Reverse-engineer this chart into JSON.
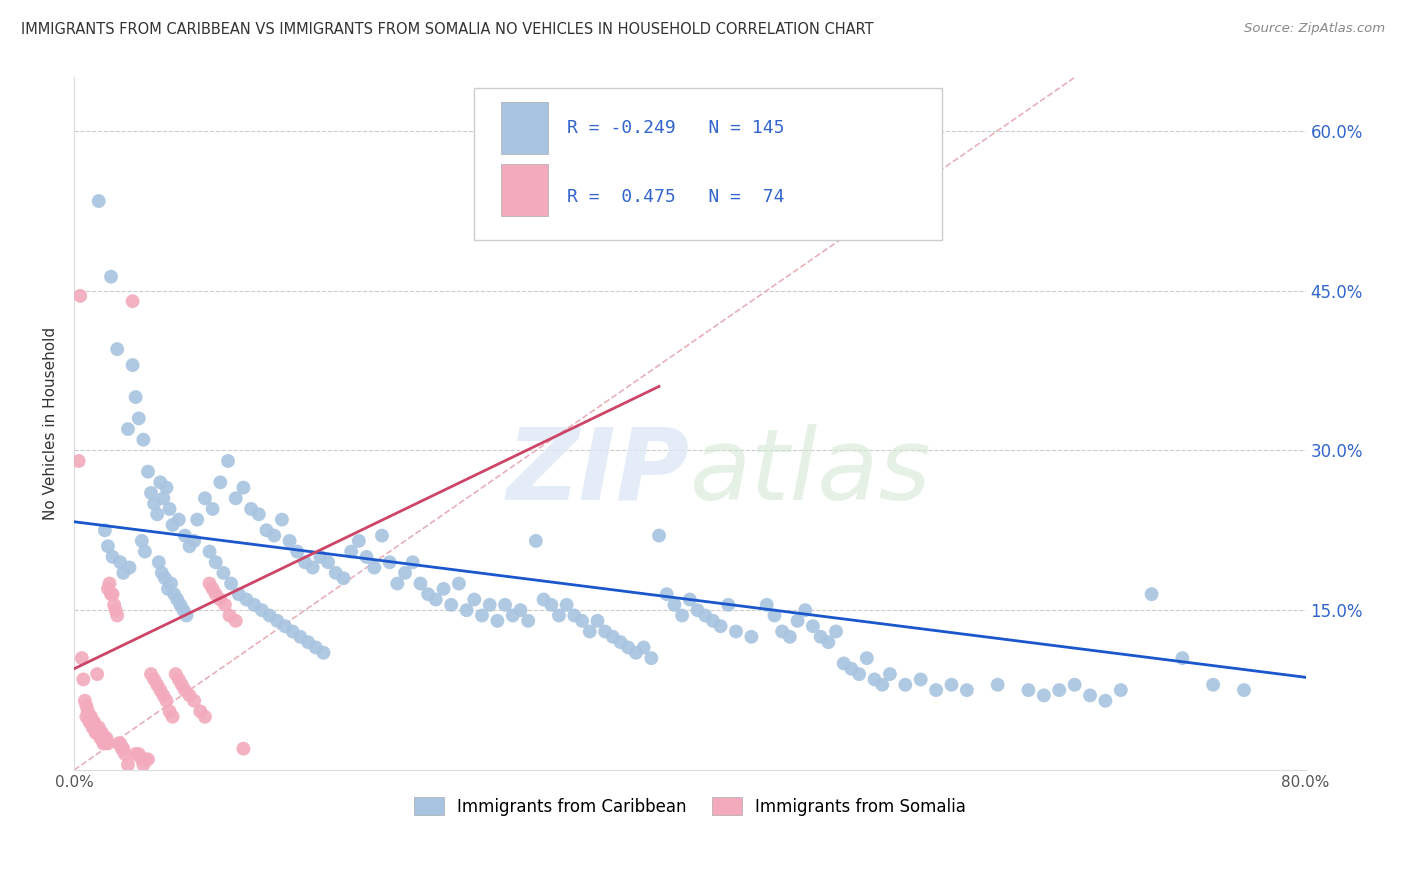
{
  "title": "IMMIGRANTS FROM CARIBBEAN VS IMMIGRANTS FROM SOMALIA NO VEHICLES IN HOUSEHOLD CORRELATION CHART",
  "source": "Source: ZipAtlas.com",
  "ylabel": "No Vehicles in Household",
  "watermark_zip": "ZIP",
  "watermark_atlas": "atlas",
  "xmin": 0.0,
  "xmax": 0.8,
  "ymin": 0.0,
  "ymax": 0.65,
  "blue_color": "#a8c4e0",
  "pink_color": "#f2aabc",
  "blue_line_color": "#1a56cc",
  "pink_line_color": "#cc4466",
  "ref_line_color": "#e8b0b8",
  "blue_scatter": [
    [
      0.016,
      0.534
    ],
    [
      0.024,
      0.463
    ],
    [
      0.028,
      0.395
    ],
    [
      0.035,
      0.32
    ],
    [
      0.038,
      0.38
    ],
    [
      0.04,
      0.35
    ],
    [
      0.042,
      0.33
    ],
    [
      0.045,
      0.31
    ],
    [
      0.048,
      0.28
    ],
    [
      0.05,
      0.26
    ],
    [
      0.052,
      0.25
    ],
    [
      0.054,
      0.24
    ],
    [
      0.056,
      0.27
    ],
    [
      0.058,
      0.255
    ],
    [
      0.06,
      0.265
    ],
    [
      0.062,
      0.245
    ],
    [
      0.064,
      0.23
    ],
    [
      0.068,
      0.235
    ],
    [
      0.072,
      0.22
    ],
    [
      0.075,
      0.21
    ],
    [
      0.02,
      0.225
    ],
    [
      0.022,
      0.21
    ],
    [
      0.025,
      0.2
    ],
    [
      0.03,
      0.195
    ],
    [
      0.032,
      0.185
    ],
    [
      0.036,
      0.19
    ],
    [
      0.044,
      0.215
    ],
    [
      0.046,
      0.205
    ],
    [
      0.055,
      0.195
    ],
    [
      0.057,
      0.185
    ],
    [
      0.059,
      0.18
    ],
    [
      0.061,
      0.17
    ],
    [
      0.063,
      0.175
    ],
    [
      0.065,
      0.165
    ],
    [
      0.067,
      0.16
    ],
    [
      0.069,
      0.155
    ],
    [
      0.071,
      0.15
    ],
    [
      0.073,
      0.145
    ],
    [
      0.078,
      0.215
    ],
    [
      0.08,
      0.235
    ],
    [
      0.085,
      0.255
    ],
    [
      0.09,
      0.245
    ],
    [
      0.095,
      0.27
    ],
    [
      0.1,
      0.29
    ],
    [
      0.105,
      0.255
    ],
    [
      0.11,
      0.265
    ],
    [
      0.115,
      0.245
    ],
    [
      0.12,
      0.24
    ],
    [
      0.125,
      0.225
    ],
    [
      0.13,
      0.22
    ],
    [
      0.135,
      0.235
    ],
    [
      0.14,
      0.215
    ],
    [
      0.145,
      0.205
    ],
    [
      0.15,
      0.195
    ],
    [
      0.155,
      0.19
    ],
    [
      0.16,
      0.2
    ],
    [
      0.165,
      0.195
    ],
    [
      0.17,
      0.185
    ],
    [
      0.175,
      0.18
    ],
    [
      0.088,
      0.205
    ],
    [
      0.092,
      0.195
    ],
    [
      0.097,
      0.185
    ],
    [
      0.102,
      0.175
    ],
    [
      0.107,
      0.165
    ],
    [
      0.112,
      0.16
    ],
    [
      0.117,
      0.155
    ],
    [
      0.122,
      0.15
    ],
    [
      0.127,
      0.145
    ],
    [
      0.132,
      0.14
    ],
    [
      0.137,
      0.135
    ],
    [
      0.142,
      0.13
    ],
    [
      0.147,
      0.125
    ],
    [
      0.152,
      0.12
    ],
    [
      0.157,
      0.115
    ],
    [
      0.162,
      0.11
    ],
    [
      0.18,
      0.205
    ],
    [
      0.185,
      0.215
    ],
    [
      0.19,
      0.2
    ],
    [
      0.195,
      0.19
    ],
    [
      0.2,
      0.22
    ],
    [
      0.205,
      0.195
    ],
    [
      0.21,
      0.175
    ],
    [
      0.215,
      0.185
    ],
    [
      0.22,
      0.195
    ],
    [
      0.225,
      0.175
    ],
    [
      0.23,
      0.165
    ],
    [
      0.235,
      0.16
    ],
    [
      0.24,
      0.17
    ],
    [
      0.245,
      0.155
    ],
    [
      0.25,
      0.175
    ],
    [
      0.255,
      0.15
    ],
    [
      0.26,
      0.16
    ],
    [
      0.265,
      0.145
    ],
    [
      0.27,
      0.155
    ],
    [
      0.275,
      0.14
    ],
    [
      0.28,
      0.155
    ],
    [
      0.285,
      0.145
    ],
    [
      0.29,
      0.15
    ],
    [
      0.295,
      0.14
    ],
    [
      0.3,
      0.215
    ],
    [
      0.305,
      0.16
    ],
    [
      0.31,
      0.155
    ],
    [
      0.315,
      0.145
    ],
    [
      0.32,
      0.155
    ],
    [
      0.325,
      0.145
    ],
    [
      0.33,
      0.14
    ],
    [
      0.335,
      0.13
    ],
    [
      0.34,
      0.14
    ],
    [
      0.345,
      0.13
    ],
    [
      0.35,
      0.125
    ],
    [
      0.355,
      0.12
    ],
    [
      0.36,
      0.115
    ],
    [
      0.365,
      0.11
    ],
    [
      0.37,
      0.115
    ],
    [
      0.375,
      0.105
    ],
    [
      0.38,
      0.22
    ],
    [
      0.385,
      0.165
    ],
    [
      0.39,
      0.155
    ],
    [
      0.395,
      0.145
    ],
    [
      0.4,
      0.16
    ],
    [
      0.405,
      0.15
    ],
    [
      0.41,
      0.145
    ],
    [
      0.415,
      0.14
    ],
    [
      0.42,
      0.135
    ],
    [
      0.425,
      0.155
    ],
    [
      0.43,
      0.13
    ],
    [
      0.44,
      0.125
    ],
    [
      0.45,
      0.155
    ],
    [
      0.455,
      0.145
    ],
    [
      0.46,
      0.13
    ],
    [
      0.465,
      0.125
    ],
    [
      0.47,
      0.14
    ],
    [
      0.475,
      0.15
    ],
    [
      0.48,
      0.135
    ],
    [
      0.485,
      0.125
    ],
    [
      0.49,
      0.12
    ],
    [
      0.495,
      0.13
    ],
    [
      0.5,
      0.1
    ],
    [
      0.505,
      0.095
    ],
    [
      0.51,
      0.09
    ],
    [
      0.515,
      0.105
    ],
    [
      0.52,
      0.085
    ],
    [
      0.525,
      0.08
    ],
    [
      0.53,
      0.09
    ],
    [
      0.54,
      0.08
    ],
    [
      0.55,
      0.085
    ],
    [
      0.56,
      0.075
    ],
    [
      0.57,
      0.08
    ],
    [
      0.58,
      0.075
    ],
    [
      0.6,
      0.08
    ],
    [
      0.62,
      0.075
    ],
    [
      0.63,
      0.07
    ],
    [
      0.64,
      0.075
    ],
    [
      0.65,
      0.08
    ],
    [
      0.66,
      0.07
    ],
    [
      0.67,
      0.065
    ],
    [
      0.68,
      0.075
    ],
    [
      0.7,
      0.165
    ],
    [
      0.72,
      0.105
    ],
    [
      0.74,
      0.08
    ],
    [
      0.76,
      0.075
    ]
  ],
  "pink_scatter": [
    [
      0.003,
      0.29
    ],
    [
      0.004,
      0.445
    ],
    [
      0.005,
      0.105
    ],
    [
      0.006,
      0.085
    ],
    [
      0.007,
      0.065
    ],
    [
      0.008,
      0.06
    ],
    [
      0.008,
      0.05
    ],
    [
      0.009,
      0.055
    ],
    [
      0.01,
      0.05
    ],
    [
      0.01,
      0.045
    ],
    [
      0.011,
      0.05
    ],
    [
      0.011,
      0.045
    ],
    [
      0.012,
      0.045
    ],
    [
      0.012,
      0.04
    ],
    [
      0.013,
      0.045
    ],
    [
      0.013,
      0.04
    ],
    [
      0.014,
      0.04
    ],
    [
      0.014,
      0.035
    ],
    [
      0.015,
      0.09
    ],
    [
      0.015,
      0.035
    ],
    [
      0.016,
      0.04
    ],
    [
      0.016,
      0.035
    ],
    [
      0.017,
      0.035
    ],
    [
      0.017,
      0.03
    ],
    [
      0.018,
      0.035
    ],
    [
      0.018,
      0.03
    ],
    [
      0.019,
      0.03
    ],
    [
      0.019,
      0.025
    ],
    [
      0.02,
      0.03
    ],
    [
      0.02,
      0.025
    ],
    [
      0.021,
      0.03
    ],
    [
      0.022,
      0.17
    ],
    [
      0.022,
      0.025
    ],
    [
      0.023,
      0.175
    ],
    [
      0.024,
      0.165
    ],
    [
      0.025,
      0.165
    ],
    [
      0.026,
      0.155
    ],
    [
      0.027,
      0.15
    ],
    [
      0.028,
      0.145
    ],
    [
      0.029,
      0.025
    ],
    [
      0.03,
      0.025
    ],
    [
      0.031,
      0.02
    ],
    [
      0.032,
      0.02
    ],
    [
      0.033,
      0.015
    ],
    [
      0.035,
      0.005
    ],
    [
      0.038,
      0.44
    ],
    [
      0.04,
      0.015
    ],
    [
      0.042,
      0.015
    ],
    [
      0.044,
      0.01
    ],
    [
      0.045,
      0.005
    ],
    [
      0.046,
      0.01
    ],
    [
      0.048,
      0.01
    ],
    [
      0.05,
      0.09
    ],
    [
      0.052,
      0.085
    ],
    [
      0.054,
      0.08
    ],
    [
      0.056,
      0.075
    ],
    [
      0.058,
      0.07
    ],
    [
      0.06,
      0.065
    ],
    [
      0.062,
      0.055
    ],
    [
      0.064,
      0.05
    ],
    [
      0.066,
      0.09
    ],
    [
      0.068,
      0.085
    ],
    [
      0.07,
      0.08
    ],
    [
      0.072,
      0.075
    ],
    [
      0.075,
      0.07
    ],
    [
      0.078,
      0.065
    ],
    [
      0.082,
      0.055
    ],
    [
      0.085,
      0.05
    ],
    [
      0.088,
      0.175
    ],
    [
      0.09,
      0.17
    ],
    [
      0.092,
      0.165
    ],
    [
      0.095,
      0.16
    ],
    [
      0.098,
      0.155
    ],
    [
      0.101,
      0.145
    ],
    [
      0.105,
      0.14
    ],
    [
      0.11,
      0.02
    ]
  ],
  "ref_line_start_x": 0.0,
  "ref_line_start_y": 0.0,
  "ref_line_end_x": 0.65,
  "ref_line_end_y": 0.65,
  "blue_trend_x": [
    0.0,
    0.8
  ],
  "blue_trend_y": [
    0.233,
    0.087
  ],
  "pink_trend_x": [
    0.0,
    0.38
  ],
  "pink_trend_y": [
    0.095,
    0.36
  ]
}
